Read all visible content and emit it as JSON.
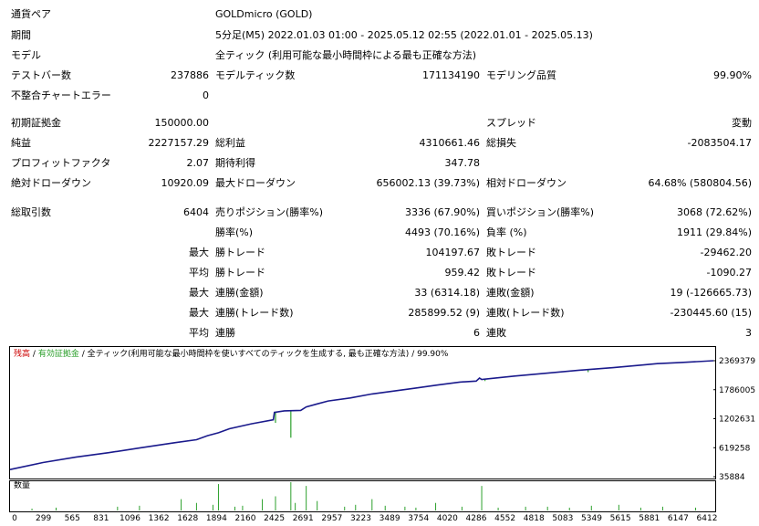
{
  "report": {
    "row_currency": {
      "label": "通貨ペア",
      "value": "GOLDmicro (GOLD)"
    },
    "row_period": {
      "label": "期間",
      "value": "5分足(M5) 2022.01.03 01:00 - 2025.05.12 02:55 (2022.01.01 - 2025.05.13)"
    },
    "row_model": {
      "label": "モデル",
      "value": "全ティック (利用可能な最小時間枠による最も正確な方法)"
    },
    "row_bars": {
      "label": "テストバー数",
      "value": "237886",
      "label2": "モデルティック数",
      "value2": "171134190",
      "label3": "モデリング品質",
      "value3": "99.90%"
    },
    "row_mismatch": {
      "label": "不整合チャートエラー",
      "value": "0"
    },
    "row_deposit": {
      "label": "初期証拠金",
      "value": "150000.00",
      "label3": "スプレッド",
      "value3": "変動"
    },
    "row_profit": {
      "label": "純益",
      "value": "2227157.29",
      "label2": "総利益",
      "value2": "4310661.46",
      "label3": "総損失",
      "value3": "-2083504.17"
    },
    "row_pf": {
      "label": "プロフィットファクタ",
      "value": "2.07",
      "label2": "期待利得",
      "value2": "347.78"
    },
    "row_dd": {
      "label": "絶対ドローダウン",
      "value": "10920.09",
      "label2": "最大ドローダウン",
      "value2": "656002.13 (39.73%)",
      "label3": "相対ドローダウン",
      "value3": "64.68% (580804.56)"
    },
    "row_trades": {
      "label": "総取引数",
      "value": "6404",
      "label2": "売りポジション(勝率%)",
      "value2": "3336 (67.90%)",
      "label3": "買いポジション(勝率%)",
      "value3": "3068 (72.62%)"
    },
    "row_winrate": {
      "label2": "勝率(%)",
      "value2": "4493 (70.16%)",
      "label3": "負率 (%)",
      "value3": "1911 (29.84%)"
    },
    "row_max_trade": {
      "prefix": "最大",
      "label2": "勝トレード",
      "value2": "104197.67",
      "label3": "敗トレード",
      "value3": "-29462.20"
    },
    "row_avg_trade": {
      "prefix": "平均",
      "label2": "勝トレード",
      "value2": "959.42",
      "label3": "敗トレード",
      "value3": "-1090.27"
    },
    "row_max_consec_amt": {
      "prefix": "最大",
      "label2": "連勝(金額)",
      "value2": "33 (6314.18)",
      "label3": "連敗(金額)",
      "value3": "19 (-126665.73)"
    },
    "row_max_consec_trades": {
      "prefix": "最大",
      "label2": "連勝(トレード数)",
      "value2": "285899.52 (9)",
      "label3": "連敗(トレード数)",
      "value3": "-230445.60 (15)"
    },
    "row_avg_consec": {
      "prefix": "平均",
      "label2": "連勝",
      "value2": "6",
      "label3": "連敗",
      "value3": "3"
    }
  },
  "legend": {
    "balance": "残高",
    "separator1": "/",
    "equity": "有効証拠金",
    "separator2": "/",
    "model": "全ティック(利用可能な最小時間枠を使いすべてのティックを生成する, 最も正確な方法)",
    "separator3": "/",
    "quality": "99.90%"
  },
  "volume_label": "数量",
  "colors": {
    "balance": "#1a1a8c",
    "equity": "#2ca02c",
    "volume": "#2ca02c",
    "legend_balance": "#cc0000"
  },
  "chart_data": {
    "type": "line",
    "title": "",
    "y_ticks": [
      "2369379",
      "1786005",
      "1202631",
      "619258",
      "35884"
    ],
    "x_ticks": [
      "0",
      "299",
      "565",
      "831",
      "1096",
      "1362",
      "1628",
      "1894",
      "2160",
      "2425",
      "2691",
      "2957",
      "3223",
      "3489",
      "3754",
      "4020",
      "4286",
      "4552",
      "4818",
      "5083",
      "5349",
      "5615",
      "5881",
      "6147",
      "6412"
    ],
    "ylim": [
      35884,
      2369379
    ],
    "xlim": [
      0,
      6412
    ],
    "series": [
      {
        "name": "残高",
        "x": [
          0,
          300,
          600,
          900,
          1200,
          1500,
          1700,
          1800,
          1900,
          2000,
          2200,
          2400,
          2410,
          2500,
          2650,
          2700,
          2800,
          2900,
          3100,
          3300,
          3500,
          3700,
          3900,
          4100,
          4250,
          4280,
          4300,
          4600,
          4900,
          5200,
          5500,
          5800,
          5900,
          6100,
          6412
        ],
        "y": [
          180000,
          320000,
          430000,
          520000,
          620000,
          720000,
          780000,
          860000,
          920000,
          1000000,
          1100000,
          1180000,
          1330000,
          1360000,
          1370000,
          1440000,
          1500000,
          1560000,
          1620000,
          1700000,
          1760000,
          1820000,
          1880000,
          1940000,
          1960000,
          2020000,
          1990000,
          2060000,
          2120000,
          2180000,
          2230000,
          2290000,
          2310000,
          2330000,
          2369379
        ]
      }
    ],
    "equity_spikes": [
      {
        "x": 2560,
        "y": 820000
      },
      {
        "x": 2420,
        "y": 1120000
      },
      {
        "x": 1810,
        "y": 860000
      },
      {
        "x": 3210,
        "y": 1620000
      },
      {
        "x": 4330,
        "y": 1960000
      },
      {
        "x": 5270,
        "y": 2140000
      }
    ],
    "volume": {
      "x": [
        200,
        420,
        980,
        1180,
        1560,
        1700,
        1850,
        1900,
        2050,
        2120,
        2300,
        2420,
        2560,
        2600,
        2700,
        2800,
        3050,
        3150,
        3300,
        3420,
        3600,
        3700,
        3880,
        4120,
        4300,
        4450,
        4700,
        4900,
        5100,
        5300,
        5550,
        5750,
        5950,
        6250
      ],
      "v": [
        2,
        3,
        4,
        5,
        12,
        8,
        6,
        28,
        4,
        5,
        12,
        15,
        30,
        8,
        26,
        10,
        4,
        6,
        12,
        5,
        4,
        3,
        8,
        4,
        26,
        3,
        4,
        4,
        3,
        5,
        6,
        3,
        4,
        3
      ],
      "vmax": 30
    }
  }
}
